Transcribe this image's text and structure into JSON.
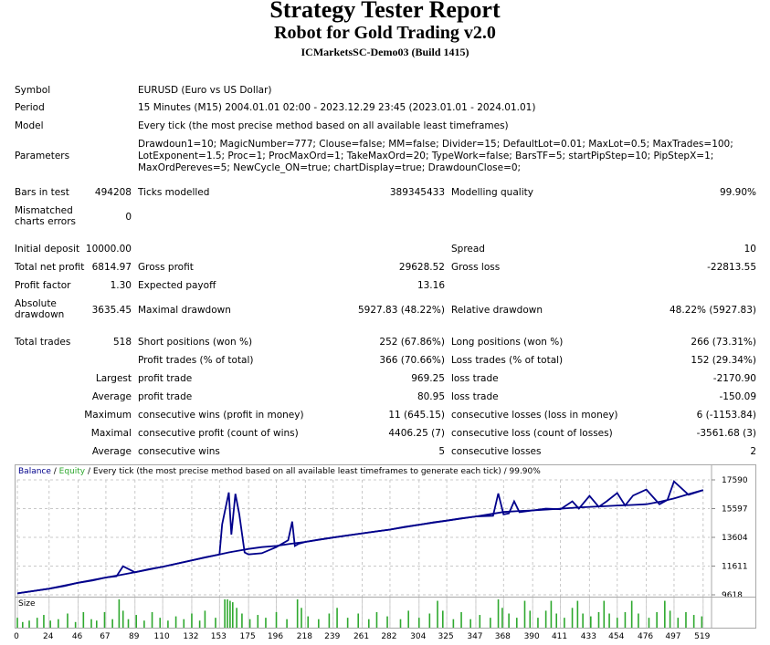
{
  "report": {
    "title": "Strategy Tester Report",
    "subtitle": "Robot for Gold Trading v2.0",
    "server": "ICMarketsSC-Demo03 (Build 1415)"
  },
  "settings": {
    "symbol_label": "Symbol",
    "symbol": "EURUSD (Euro vs US Dollar)",
    "period_label": "Period",
    "period": "15 Minutes (M15) 2004.01.01 02:00 - 2023.12.29 23:45 (2023.01.01 - 2024.01.01)",
    "model_label": "Model",
    "model": "Every tick (the most precise method based on all available least timeframes)",
    "parameters_label": "Parameters",
    "parameters": "Drawdoun1=10; MagicNumber=777; Clouse=false; MM=false; Divider=15; DefaultLot=0.01; MaxLot=0.5; MaxTrades=100; LotExponent=1.5; Proc=1; ProcMaxOrd=1; TakeMaxOrd=20; TypeWork=false; BarsTF=5; startPipStep=10; PipStepX=1; MaxOrdPereves=5; NewCycle_ON=true; chartDisplay=true; DrawdounClose=0;"
  },
  "stats": {
    "bars_label": "Bars in test",
    "bars": "494208",
    "ticks_label": "Ticks modelled",
    "ticks": "389345433",
    "quality_label": "Modelling quality",
    "quality": "99.90%",
    "mismatch_label": "Mismatched charts errors",
    "mismatch": "0",
    "deposit_label": "Initial deposit",
    "deposit": "10000.00",
    "spread_label": "Spread",
    "spread": "10",
    "netprofit_label": "Total net profit",
    "netprofit": "6814.97",
    "grossprofit_label": "Gross profit",
    "grossprofit": "29628.52",
    "grossloss_label": "Gross loss",
    "grossloss": "-22813.55",
    "pf_label": "Profit factor",
    "pf": "1.30",
    "payoff_label": "Expected payoff",
    "payoff": "13.16",
    "absdd_label": "Absolute drawdown",
    "absdd": "3635.45",
    "maxdd_label": "Maximal drawdown",
    "maxdd": "5927.83 (48.22%)",
    "reldd_label": "Relative drawdown",
    "reldd": "48.22% (5927.83)",
    "trades_label": "Total trades",
    "trades": "518",
    "short_label": "Short positions (won %)",
    "short": "252 (67.86%)",
    "long_label": "Long positions (won %)",
    "long": "266 (73.31%)",
    "pt_label": "Profit trades (% of total)",
    "pt": "366 (70.66%)",
    "lt_label": "Loss trades (% of total)",
    "lt": "152 (29.34%)",
    "largest_label": "Largest",
    "largest_pt_label": "profit trade",
    "largest_pt": "969.25",
    "largest_lt_label": "loss trade",
    "largest_lt": "-2170.90",
    "average_label": "Average",
    "average_pt_label": "profit trade",
    "average_pt": "80.95",
    "average_lt_label": "loss trade",
    "average_lt": "-150.09",
    "maximum_label": "Maximum",
    "max_cw_label": "consecutive wins (profit in money)",
    "max_cw": "11 (645.15)",
    "max_cl_label": "consecutive losses (loss in money)",
    "max_cl": "6 (-1153.84)",
    "maximal_label": "Maximal",
    "mxl_cp_label": "consecutive profit (count of wins)",
    "mxl_cp": "4406.25 (7)",
    "mxl_cl_label": "consecutive loss (count of losses)",
    "mxl_cl": "-3561.68 (3)",
    "average2_label": "Average",
    "avg_cw_label": "consecutive wins",
    "avg_cw": "5",
    "avg_cl_label": "consecutive losses",
    "avg_cl": "2"
  },
  "chart_header": {
    "balance": "Balance",
    "sep1": " / ",
    "equity": "Equity",
    "rest": " / Every tick (the most precise method based on all available least timeframes to generate each tick) / 99.90%"
  },
  "size_label": "Size",
  "chart_data": {
    "type": "line",
    "x_ticks": [
      0,
      24,
      46,
      67,
      89,
      110,
      132,
      153,
      175,
      196,
      218,
      239,
      261,
      282,
      304,
      325,
      347,
      368,
      390,
      411,
      433,
      454,
      476,
      497,
      519
    ],
    "y_ticks": [
      9618,
      11611,
      13604,
      15597,
      17590
    ],
    "ylim": [
      9618,
      17900
    ],
    "xlim": [
      0,
      524
    ],
    "grid": true,
    "colors": {
      "balance": "#00008b",
      "equity": "#2ea82e",
      "size": "#2ea82e"
    },
    "series": [
      {
        "name": "Balance",
        "x": [
          0,
          12,
          24,
          36,
          46,
          57,
          67,
          78,
          89,
          100,
          110,
          121,
          132,
          142,
          153,
          160,
          175,
          185,
          196,
          207,
          218,
          229,
          239,
          250,
          261,
          272,
          282,
          293,
          304,
          315,
          325,
          336,
          347,
          357,
          368,
          380,
          390,
          400,
          411,
          422,
          433,
          444,
          454,
          465,
          476,
          487,
          497,
          508,
          519
        ],
        "y": [
          9720,
          9880,
          10040,
          10240,
          10450,
          10610,
          10820,
          10990,
          11180,
          11410,
          11560,
          11790,
          12010,
          12220,
          12420,
          12560,
          12800,
          12930,
          13010,
          13160,
          13290,
          13460,
          13590,
          13740,
          13880,
          14020,
          14140,
          14330,
          14480,
          14650,
          14760,
          14920,
          15050,
          15200,
          15360,
          15430,
          15470,
          15530,
          15590,
          15660,
          15720,
          15760,
          15810,
          15850,
          15900,
          16090,
          16300,
          16600,
          16880
        ]
      },
      {
        "name": "Equity",
        "x": [
          0,
          24,
          46,
          67,
          75,
          80,
          89,
          110,
          132,
          153,
          155,
          160,
          162,
          165,
          168,
          172,
          175,
          185,
          196,
          205,
          208,
          210,
          213,
          218,
          239,
          261,
          282,
          304,
          325,
          347,
          360,
          364,
          368,
          372,
          376,
          380,
          390,
          400,
          411,
          420,
          425,
          433,
          440,
          446,
          454,
          460,
          466,
          476,
          486,
          492,
          497,
          508,
          519
        ],
        "y": [
          9720,
          10040,
          10450,
          10820,
          10900,
          11600,
          11180,
          11560,
          12010,
          12420,
          14500,
          16720,
          13800,
          16620,
          15200,
          12560,
          12420,
          12500,
          12930,
          13400,
          14700,
          13010,
          13160,
          13290,
          13590,
          13880,
          14140,
          14480,
          14760,
          15050,
          15100,
          16650,
          15200,
          15270,
          16100,
          15350,
          15470,
          15600,
          15550,
          16100,
          15600,
          16480,
          15720,
          16100,
          16680,
          15810,
          16500,
          16920,
          15900,
          16200,
          17480,
          16550,
          16880
        ]
      },
      {
        "name": "Size",
        "spikes": [
          [
            0,
            0.35
          ],
          [
            4,
            0.2
          ],
          [
            9,
            0.25
          ],
          [
            15,
            0.35
          ],
          [
            20,
            0.45
          ],
          [
            25,
            0.25
          ],
          [
            31,
            0.3
          ],
          [
            38,
            0.5
          ],
          [
            44,
            0.2
          ],
          [
            50,
            0.55
          ],
          [
            56,
            0.3
          ],
          [
            60,
            0.25
          ],
          [
            66,
            0.55
          ],
          [
            72,
            0.3
          ],
          [
            77,
            1.0
          ],
          [
            80,
            0.6
          ],
          [
            84,
            0.3
          ],
          [
            90,
            0.45
          ],
          [
            96,
            0.25
          ],
          [
            102,
            0.55
          ],
          [
            108,
            0.35
          ],
          [
            114,
            0.25
          ],
          [
            120,
            0.4
          ],
          [
            126,
            0.3
          ],
          [
            132,
            0.5
          ],
          [
            138,
            0.25
          ],
          [
            142,
            0.6
          ],
          [
            150,
            0.35
          ],
          [
            157,
            1.0
          ],
          [
            159,
            1.0
          ],
          [
            161,
            0.95
          ],
          [
            163,
            0.9
          ],
          [
            166,
            0.7
          ],
          [
            170,
            0.5
          ],
          [
            176,
            0.3
          ],
          [
            182,
            0.45
          ],
          [
            188,
            0.35
          ],
          [
            196,
            0.55
          ],
          [
            204,
            0.3
          ],
          [
            212,
            1.0
          ],
          [
            215,
            0.7
          ],
          [
            220,
            0.4
          ],
          [
            228,
            0.3
          ],
          [
            236,
            0.5
          ],
          [
            242,
            0.7
          ],
          [
            250,
            0.35
          ],
          [
            258,
            0.5
          ],
          [
            266,
            0.3
          ],
          [
            272,
            0.55
          ],
          [
            280,
            0.4
          ],
          [
            290,
            0.3
          ],
          [
            296,
            0.6
          ],
          [
            304,
            0.35
          ],
          [
            312,
            0.5
          ],
          [
            318,
            0.95
          ],
          [
            322,
            0.6
          ],
          [
            330,
            0.3
          ],
          [
            336,
            0.55
          ],
          [
            343,
            0.3
          ],
          [
            350,
            0.45
          ],
          [
            358,
            0.35
          ],
          [
            364,
            1.0
          ],
          [
            367,
            0.7
          ],
          [
            372,
            0.5
          ],
          [
            378,
            0.35
          ],
          [
            384,
            0.95
          ],
          [
            388,
            0.6
          ],
          [
            394,
            0.35
          ],
          [
            400,
            0.6
          ],
          [
            404,
            0.95
          ],
          [
            408,
            0.5
          ],
          [
            414,
            0.35
          ],
          [
            420,
            0.7
          ],
          [
            424,
            0.95
          ],
          [
            428,
            0.5
          ],
          [
            434,
            0.4
          ],
          [
            440,
            0.55
          ],
          [
            444,
            0.95
          ],
          [
            448,
            0.5
          ],
          [
            454,
            0.35
          ],
          [
            460,
            0.55
          ],
          [
            465,
            0.95
          ],
          [
            470,
            0.5
          ],
          [
            478,
            0.35
          ],
          [
            484,
            0.55
          ],
          [
            490,
            0.95
          ],
          [
            494,
            0.6
          ],
          [
            500,
            0.35
          ],
          [
            506,
            0.55
          ],
          [
            512,
            0.45
          ],
          [
            518,
            0.4
          ]
        ]
      }
    ]
  }
}
